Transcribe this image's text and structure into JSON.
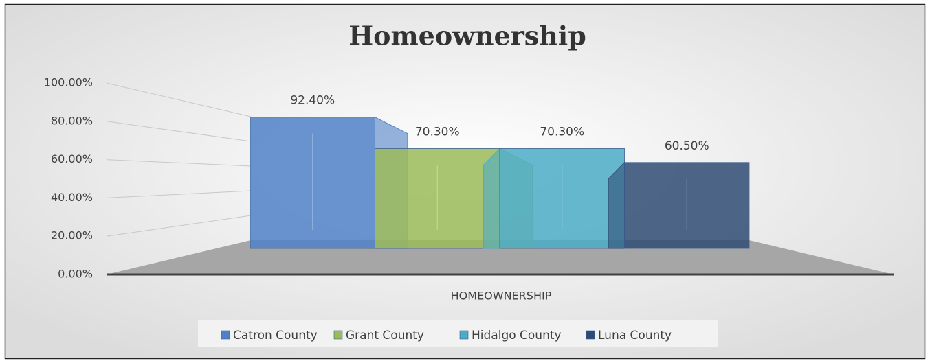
{
  "chart_data": {
    "type": "bar3d",
    "title": "Homeownership",
    "categories": [
      "HOMEOWNERSHIP"
    ],
    "series": [
      {
        "name": "Catron County",
        "color": "#4f81c7",
        "values": [
          92.4
        ],
        "value_labels": [
          "92.40%"
        ]
      },
      {
        "name": "Grant County",
        "color": "#9bbb59",
        "values": [
          70.3
        ],
        "value_labels": [
          "70.30%"
        ]
      },
      {
        "name": "Hidalgo County",
        "color": "#4bacc6",
        "values": [
          70.3
        ],
        "value_labels": [
          "70.30%"
        ]
      },
      {
        "name": "Luna County",
        "color": "#2f4b73",
        "values": [
          60.5
        ],
        "value_labels": [
          "60.50%"
        ]
      }
    ],
    "ylim": [
      0,
      100
    ],
    "yticks": [
      {
        "value": 0,
        "label": "0.00%"
      },
      {
        "value": 20,
        "label": "20.00%"
      },
      {
        "value": 40,
        "label": "40.00%"
      },
      {
        "value": 60,
        "label": "60.00%"
      },
      {
        "value": 80,
        "label": "80.00%"
      },
      {
        "value": 100,
        "label": "100.00%"
      }
    ],
    "grid": true,
    "legend": "bottom"
  }
}
